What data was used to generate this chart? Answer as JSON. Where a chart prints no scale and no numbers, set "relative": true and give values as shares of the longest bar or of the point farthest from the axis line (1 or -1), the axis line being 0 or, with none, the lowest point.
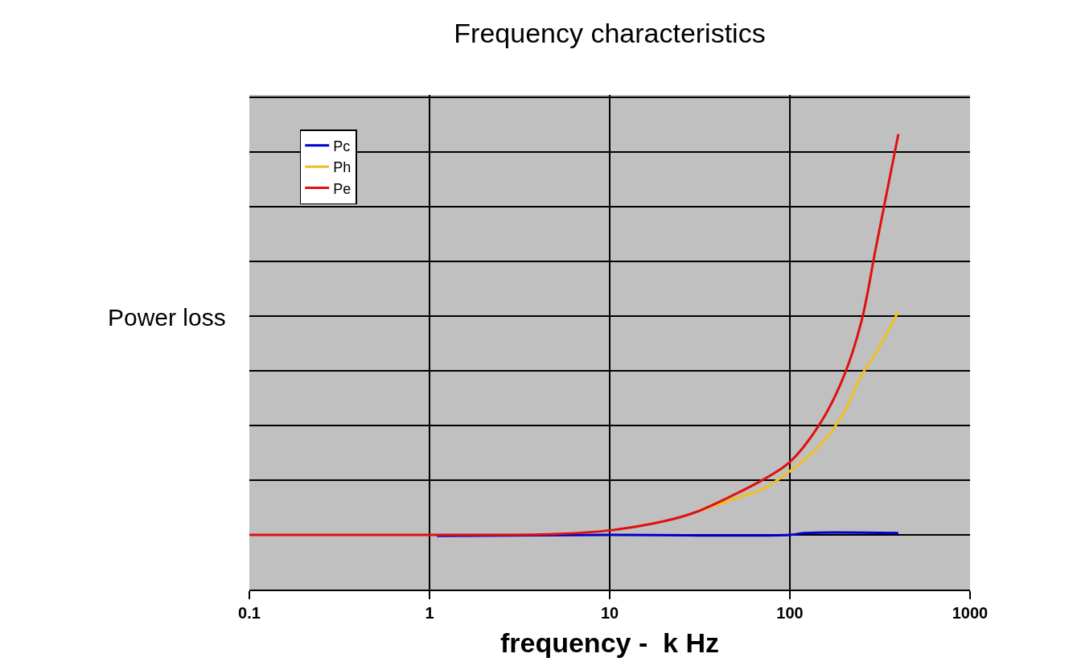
{
  "chart_data": {
    "type": "line",
    "title": "Frequency characteristics",
    "xlabel": "frequency -  k Hz",
    "ylabel": "Power loss",
    "relative": true,
    "log": "x",
    "xlim": [
      0.1,
      1000
    ],
    "xticks": [
      0.1,
      1,
      10,
      100,
      1000
    ],
    "grid": true,
    "legend": "top left",
    "marker": "none",
    "line_style": "solid",
    "series": [
      {
        "name": "Pc",
        "color": "#0000cc",
        "x": [
          1.1,
          10,
          100,
          120,
          400
        ],
        "values": [
          0.118,
          0.12,
          0.12,
          0.124,
          0.124
        ]
      },
      {
        "name": "Ph",
        "color": "#f0c020",
        "x": [
          30,
          50,
          70,
          100,
          150,
          200,
          250,
          300,
          400
        ],
        "values": [
          0.17,
          0.2,
          0.22,
          0.26,
          0.32,
          0.39,
          0.47,
          0.52,
          0.61
        ]
      },
      {
        "name": "Pe",
        "color": "#e01010",
        "x": [
          0.1,
          1,
          5,
          10,
          20,
          30,
          50,
          70,
          100,
          150,
          200,
          250,
          300,
          400
        ],
        "values": [
          0.12,
          0.12,
          0.122,
          0.13,
          0.15,
          0.17,
          0.21,
          0.24,
          0.28,
          0.37,
          0.47,
          0.59,
          0.75,
          1.0
        ]
      }
    ]
  }
}
